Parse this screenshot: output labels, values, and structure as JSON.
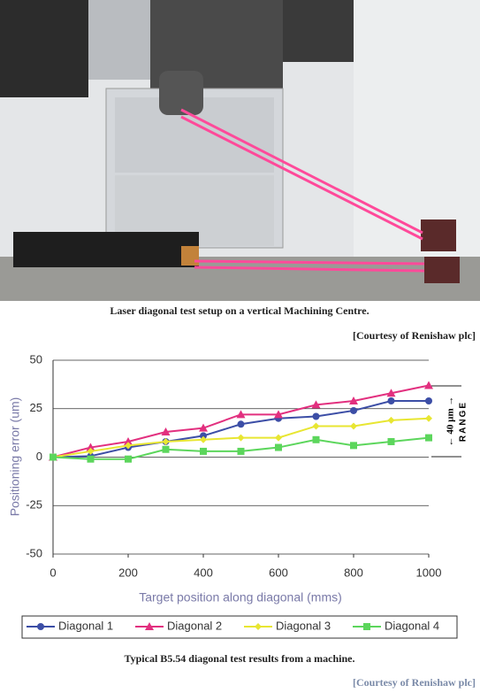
{
  "figure1": {
    "caption": "Laser diagonal test setup on a vertical Machining Centre.",
    "credit": "[Courtesy of Renishaw plc]"
  },
  "chart_data": {
    "type": "line",
    "y_label": "Positioning error (um)",
    "x_label": "Target position along diagonal (mms)",
    "annotations": [
      "← 40 µm →",
      "RANGE"
    ],
    "x": [
      0,
      100,
      200,
      300,
      400,
      500,
      600,
      700,
      800,
      900,
      1000
    ],
    "xlim": [
      0,
      1000
    ],
    "xticks": [
      0,
      200,
      400,
      600,
      800,
      1000
    ],
    "ylim": [
      -50,
      50
    ],
    "yticks": [
      -50,
      -25,
      0,
      25,
      50
    ],
    "grid": true,
    "series": [
      {
        "name": "Diagonal 1",
        "color": "#3c4ea6",
        "marker": "circle",
        "values": [
          0,
          0.5,
          5,
          8,
          11,
          17,
          20,
          21,
          24,
          29,
          29
        ]
      },
      {
        "name": "Diagonal 2",
        "color": "#e2307f",
        "marker": "triangle",
        "values": [
          0,
          5,
          8,
          13,
          15,
          22,
          22,
          27,
          29,
          33,
          37
        ]
      },
      {
        "name": "Diagonal 3",
        "color": "#e8e632",
        "marker": "diamond",
        "values": [
          0,
          3,
          6,
          8,
          9,
          10,
          10,
          16,
          16,
          19,
          20
        ]
      },
      {
        "name": "Diagonal 4",
        "color": "#5cd65c",
        "marker": "square",
        "values": [
          0,
          -1,
          -1,
          4,
          3,
          3,
          5,
          9,
          6,
          8,
          10
        ]
      }
    ]
  },
  "figure2": {
    "caption": "Typical B5.54 diagonal test results from a machine.",
    "credit": "[Courtesy of Renishaw plc]"
  }
}
